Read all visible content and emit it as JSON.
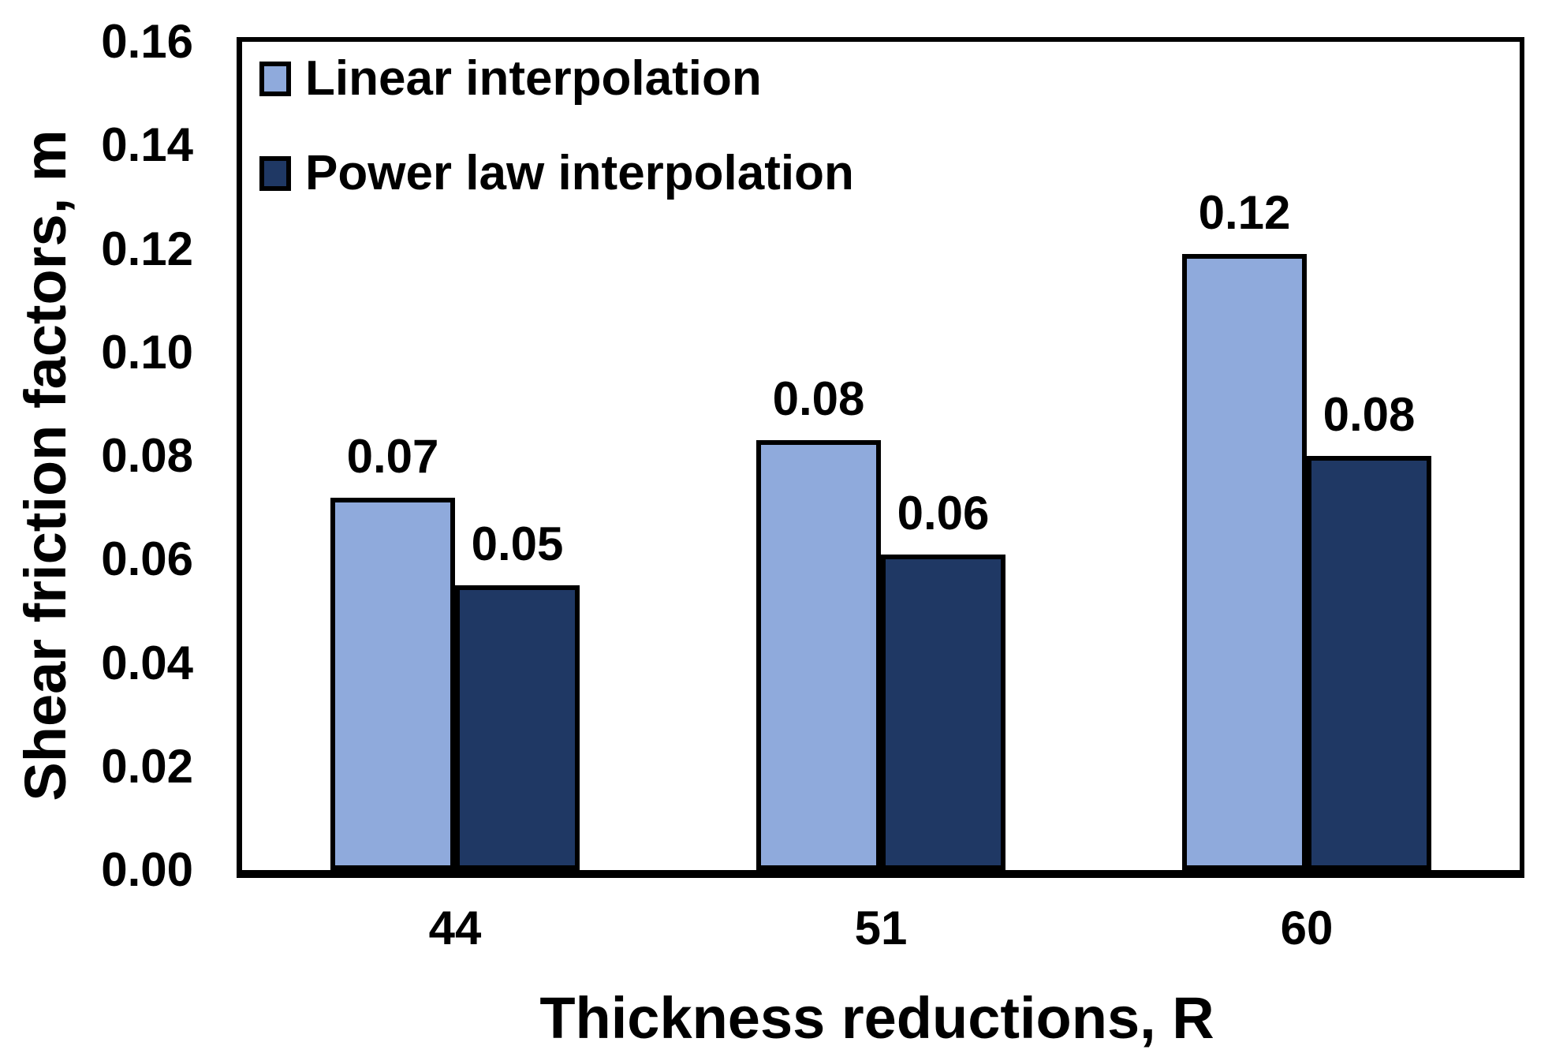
{
  "chart_data": {
    "type": "bar",
    "title": "",
    "xlabel": "Thickness reductions, R",
    "ylabel": "Shear friction factors, m",
    "categories": [
      "44",
      "51",
      "60"
    ],
    "series": [
      {
        "name": "Linear interpolation",
        "color": "#8FAADC",
        "values": [
          0.07,
          0.08,
          0.12
        ],
        "data_labels": [
          "0.07",
          "0.08",
          "0.12"
        ],
        "plotted_values": [
          0.072,
          0.083,
          0.119
        ]
      },
      {
        "name": "Power law interpolation",
        "color": "#1F3864",
        "values": [
          0.05,
          0.06,
          0.08
        ],
        "data_labels": [
          "0.05",
          "0.06",
          "0.08"
        ],
        "plotted_values": [
          0.055,
          0.061,
          0.08
        ]
      }
    ],
    "ylim": [
      0,
      0.16
    ],
    "ytick_step": 0.02,
    "ytick_labels": [
      "0.00",
      "0.02",
      "0.04",
      "0.06",
      "0.08",
      "0.10",
      "0.12",
      "0.14",
      "0.16"
    ],
    "grid": false,
    "legend_position": "top-left-inside",
    "bar_outline_color": "#000000",
    "axis_color": "#000000",
    "text_color": "#000000",
    "background_color": "#FFFFFF"
  }
}
